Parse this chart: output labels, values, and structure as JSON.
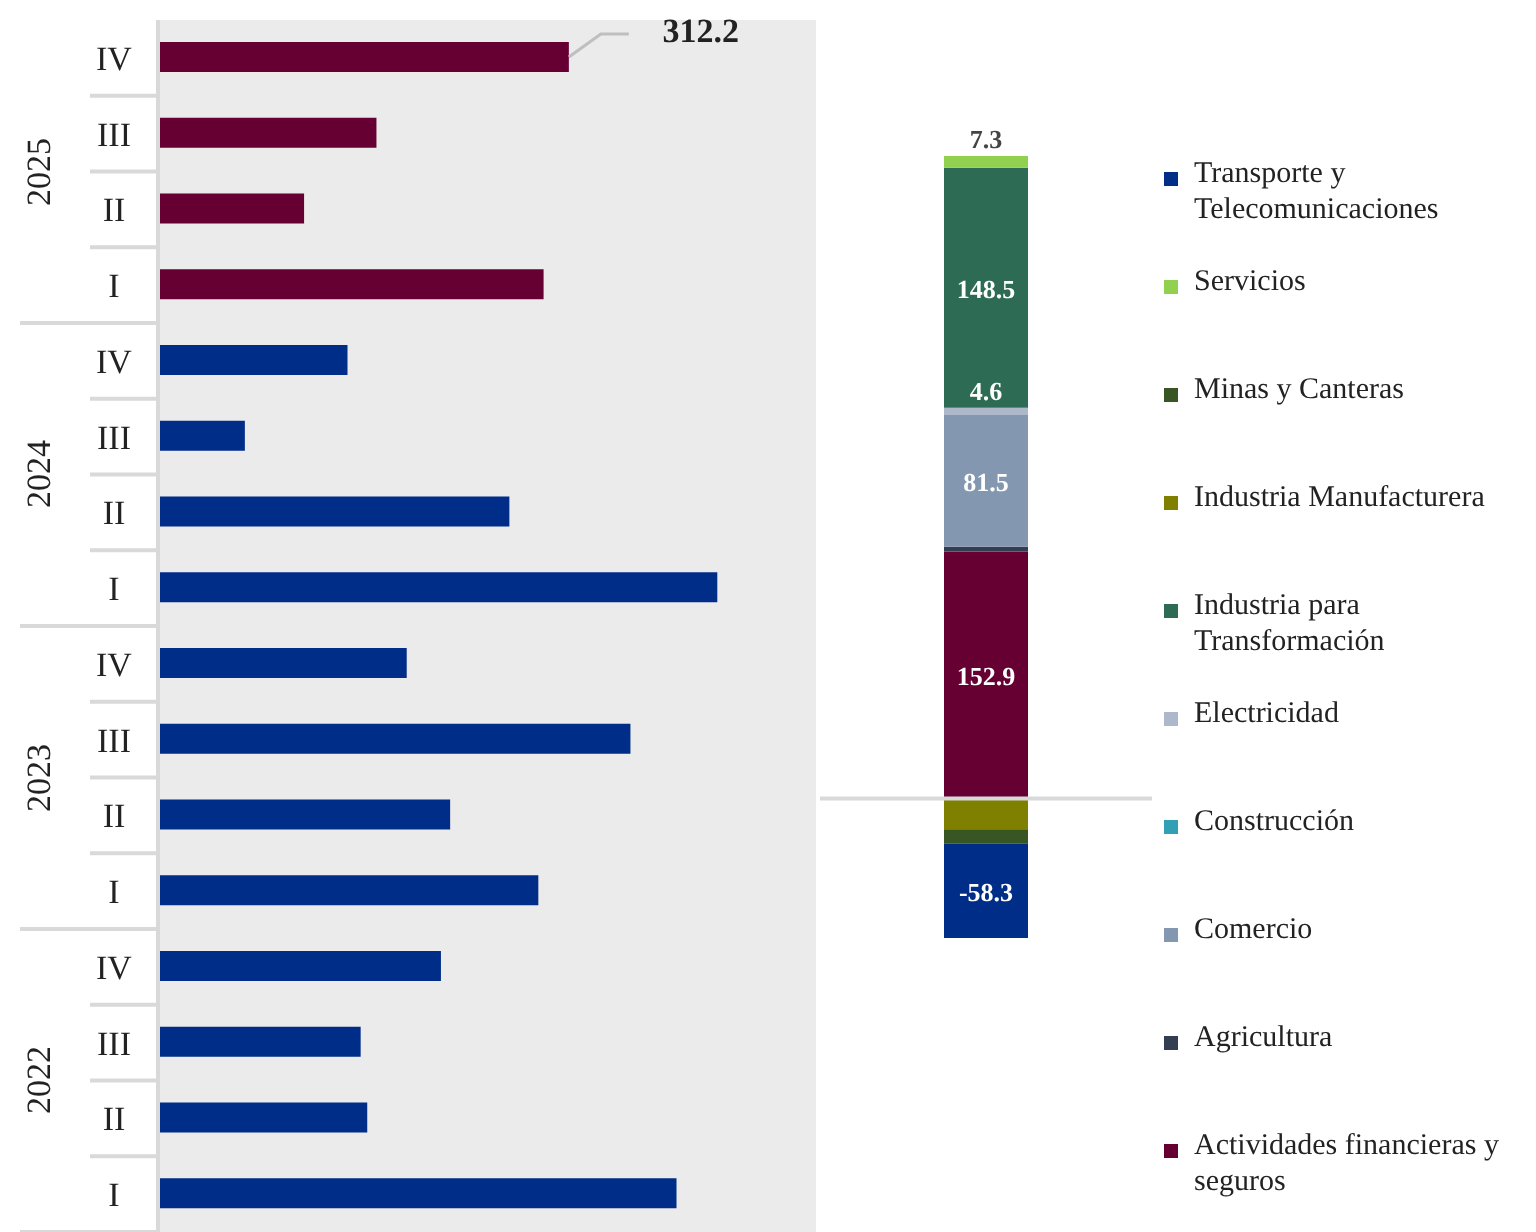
{
  "chart_data": [
    {
      "type": "bar",
      "orientation": "horizontal",
      "categories": [
        "IV",
        "III",
        "II",
        "I",
        "IV",
        "III",
        "II",
        "I",
        "IV",
        "III",
        "II",
        "I",
        "IV",
        "III",
        "II",
        "I"
      ],
      "values": [
        312.2,
        166,
        111,
        293,
        144,
        66,
        267,
        425,
        189,
        359,
        222,
        289,
        215,
        154,
        159,
        394
      ],
      "colors": [
        "#660033",
        "#660033",
        "#660033",
        "#660033",
        "#002d87",
        "#002d87",
        "#002d87",
        "#002d87",
        "#002d87",
        "#002d87",
        "#002d87",
        "#002d87",
        "#002d87",
        "#002d87",
        "#002d87",
        "#002d87"
      ],
      "value_labels": [
        "312.2",
        null,
        null,
        null,
        null,
        null,
        null,
        null,
        null,
        null,
        null,
        null,
        null,
        null,
        null,
        null
      ],
      "annotations": [
        "2025",
        "2024",
        "2023",
        "2022"
      ],
      "xlim": [
        0,
        500
      ],
      "tick_labels": "y",
      "grid": false
    },
    {
      "type": "bar",
      "stacked": true,
      "categories": [
        null
      ],
      "ylim": [
        -86.3,
        397.8
      ],
      "tick_labels": false,
      "grid": false,
      "legend": "right",
      "ref_lines": [
        {
          "axis": "y",
          "value": 0,
          "color": "#d9d9d9"
        }
      ],
      "series": [
        {
          "name": "Actividades financieras y seguros",
          "color": "#660033",
          "values": [
            152.9
          ],
          "value_labels": [
            "152.9"
          ]
        },
        {
          "name": "Agricultura",
          "color": "#333f50",
          "values": [
            3
          ],
          "value_labels": [
            null
          ]
        },
        {
          "name": "Comercio",
          "color": "#8497b0",
          "values": [
            81.5
          ],
          "value_labels": [
            "81.5"
          ]
        },
        {
          "name": "Construcción",
          "color": "#31a0b5",
          "values": [
            null
          ],
          "value_labels": [
            null
          ]
        },
        {
          "name": "Electricidad",
          "color": "#adb9ca",
          "values": [
            4.6
          ],
          "value_labels": [
            "4.6"
          ]
        },
        {
          "name": "Industria para Transformación",
          "color": "#2e6b55",
          "values": [
            148.5
          ],
          "value_labels": [
            "148.5"
          ]
        },
        {
          "name": "Industria Manufacturera",
          "color": "#7f7f00",
          "values": [
            -19
          ],
          "value_labels": [
            null
          ]
        },
        {
          "name": "Minas y Canteras",
          "color": "#375623",
          "values": [
            -9
          ],
          "value_labels": [
            null
          ]
        },
        {
          "name": "Servicios",
          "color": "#92d050",
          "values": [
            7.3
          ],
          "value_labels": [
            "7.3"
          ]
        },
        {
          "name": "Transporte y Telecomunicaciones",
          "color": "#002d87",
          "values": [
            -58.3
          ],
          "value_labels": [
            "-58.3"
          ]
        }
      ]
    }
  ]
}
